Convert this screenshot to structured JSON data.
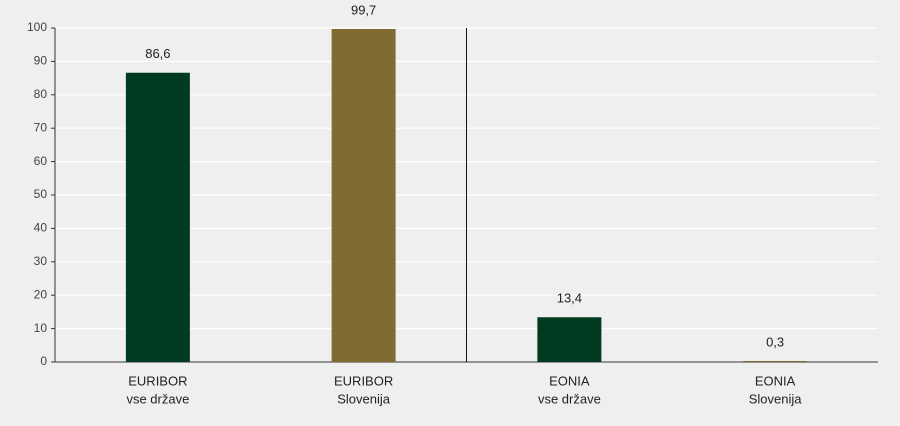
{
  "chart_data": {
    "type": "bar",
    "categories": [
      [
        "EURIBOR",
        "vse države"
      ],
      [
        "EURIBOR",
        "Slovenija"
      ],
      [
        "EONIA",
        "vse države"
      ],
      [
        "EONIA",
        "Slovenija"
      ]
    ],
    "values": [
      86.6,
      99.7,
      13.4,
      0.3
    ],
    "value_labels": [
      "86,6",
      "99,7",
      "13,4",
      "0,3"
    ],
    "colors": [
      "#003a20",
      "#806c32",
      "#003a20",
      "#806c32"
    ],
    "ylim": [
      0,
      100
    ],
    "yticks": [
      0,
      10,
      20,
      30,
      40,
      50,
      60,
      70,
      80,
      90,
      100
    ],
    "grid": true
  }
}
